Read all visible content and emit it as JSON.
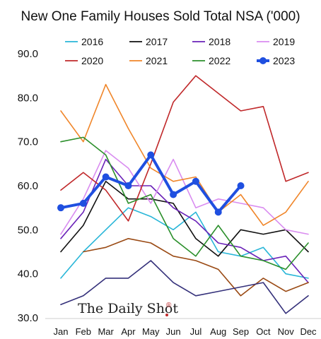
{
  "chart_data": {
    "type": "line",
    "title": "New One Family Houses Sold Total NSA ('000)",
    "xlabel": "",
    "ylabel": "",
    "categories": [
      "Jan",
      "Feb",
      "Mar",
      "Apr",
      "May",
      "Jun",
      "Jul",
      "Aug",
      "Sep",
      "Oct",
      "Nov",
      "Dec"
    ],
    "ylim": [
      30,
      90
    ],
    "yticks": [
      "30.0",
      "40.0",
      "50.0",
      "60.0",
      "70.0",
      "80.0",
      "90.0"
    ],
    "grid": false,
    "legend_placement": "top",
    "series": [
      {
        "name": "2016",
        "color": "#29b6d8",
        "width": 1.6,
        "values": [
          39,
          45,
          50,
          55,
          53,
          50,
          54,
          45,
          44,
          46,
          40,
          39
        ]
      },
      {
        "name": "2017",
        "color": "#111111",
        "width": 1.6,
        "values": [
          45,
          51,
          61,
          57,
          57,
          56,
          48,
          44,
          50,
          49,
          50,
          45
        ]
      },
      {
        "name": "2018",
        "color": "#6a22b8",
        "width": 1.6,
        "values": [
          48,
          54,
          66,
          60,
          60,
          55,
          52,
          47,
          46,
          43,
          44,
          38
        ]
      },
      {
        "name": "2019",
        "color": "#d98cf0",
        "width": 1.6,
        "values": [
          49,
          57,
          68,
          64,
          56,
          66,
          55,
          57,
          56,
          55,
          50,
          49
        ]
      },
      {
        "name": "2020",
        "color": "#c0282a",
        "width": 1.6,
        "values": [
          59,
          63,
          59,
          52,
          65,
          79,
          85,
          81,
          77,
          78,
          61,
          63
        ]
      },
      {
        "name": "2021",
        "color": "#f0862a",
        "width": 1.6,
        "values": [
          77,
          70,
          83,
          73,
          64,
          61,
          62,
          54,
          58,
          51,
          54,
          61
        ]
      },
      {
        "name": "2022",
        "color": "#2b8f2b",
        "width": 1.6,
        "values": [
          70,
          71,
          67,
          56,
          58,
          48,
          44,
          51,
          44,
          43,
          41,
          47
        ]
      },
      {
        "name": "2023",
        "color": "#1f4fe0",
        "width": 4,
        "markers": true,
        "values": [
          55,
          56,
          62,
          60,
          67,
          58,
          61,
          54,
          60,
          null,
          null,
          null
        ]
      },
      {
        "name": "",
        "color": "#9a4a14",
        "width": 1.6,
        "values": [
          null,
          45,
          46,
          48,
          47,
          44,
          43,
          41,
          35,
          39,
          36,
          38
        ]
      },
      {
        "name": "",
        "color": "#34307a",
        "width": 1.6,
        "values": [
          33,
          35,
          39,
          39,
          43,
          38,
          35,
          36,
          37,
          38,
          31,
          35
        ]
      }
    ],
    "watermark": {
      "text": "The Daily Shot",
      "mark": "®"
    }
  }
}
